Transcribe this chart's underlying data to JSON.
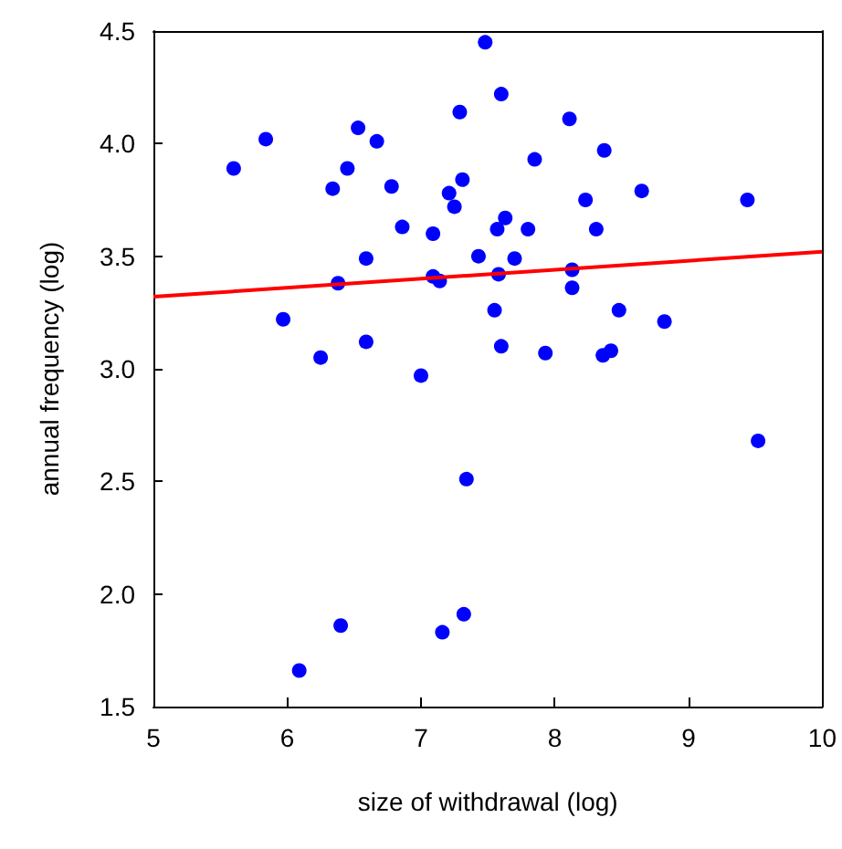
{
  "chart_data": {
    "type": "scatter",
    "xlabel": "size of withdrawal (log)",
    "ylabel": "annual frequency (log)",
    "xlim": [
      5,
      10
    ],
    "xticks": [
      5,
      6,
      7,
      8,
      9,
      10
    ],
    "ylim": [
      1.5,
      4.5
    ],
    "yticks": [
      {
        "value": 1.5,
        "label": "1.5"
      },
      {
        "value": 2,
        "label": "2.0"
      },
      {
        "value": 2.5,
        "label": "2.5"
      },
      {
        "value": 3,
        "label": "3.0"
      },
      {
        "value": 3.5,
        "label": "3.5"
      },
      {
        "value": 4,
        "label": "4.0"
      },
      {
        "value": 4.5,
        "label": "4.5"
      }
    ],
    "grid": false,
    "marker": "circle",
    "series": [
      {
        "color": "#0000ff",
        "x": [
          5.6,
          5.84,
          6.53,
          6.67,
          6.45,
          6.34,
          6.78,
          7.29,
          7.31,
          7.21,
          7.25,
          6.86,
          7.09,
          6.59,
          7.43,
          6.38,
          7.09,
          7.14,
          5.97,
          6.59,
          6.25,
          7.0,
          6.09,
          6.4,
          7.16,
          7.32,
          7.34,
          7.48,
          7.6,
          8.11,
          7.85,
          8.37,
          8.65,
          9.44,
          8.23,
          7.63,
          7.57,
          7.8,
          8.31,
          7.7,
          7.58,
          8.13,
          8.13,
          7.55,
          8.48,
          8.82,
          7.6,
          7.93,
          8.36,
          8.42,
          9.52
        ],
        "values": [
          3.89,
          4.02,
          4.07,
          4.01,
          3.89,
          3.8,
          3.81,
          4.14,
          3.84,
          3.78,
          3.72,
          3.63,
          3.6,
          3.49,
          3.5,
          3.38,
          3.41,
          3.39,
          3.22,
          3.12,
          3.05,
          2.97,
          1.66,
          1.86,
          1.83,
          1.91,
          2.51,
          4.45,
          4.22,
          4.11,
          3.93,
          3.97,
          3.79,
          3.75,
          3.75,
          3.67,
          3.62,
          3.62,
          3.62,
          3.49,
          3.42,
          3.44,
          3.36,
          3.26,
          3.26,
          3.21,
          3.1,
          3.07,
          3.06,
          3.08,
          2.68
        ]
      },
      {
        "type": "line",
        "color": "#ff0000",
        "marker": "none",
        "line_style": "solid",
        "x": [
          5,
          10
        ],
        "values": [
          3.32,
          3.52
        ]
      }
    ]
  }
}
